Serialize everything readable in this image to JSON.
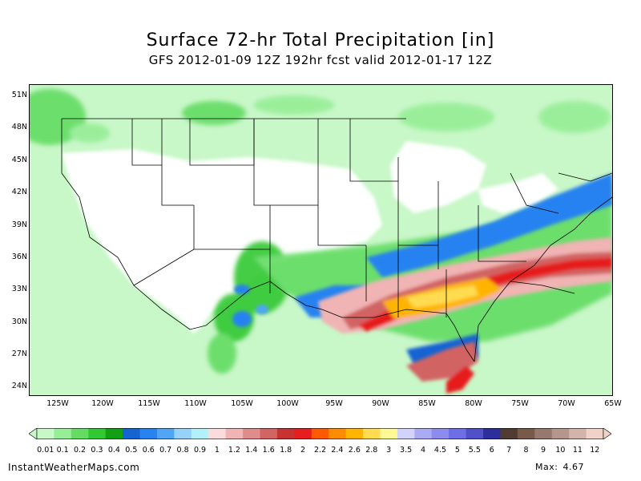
{
  "title": "Surface 72-hr Total Precipitation [in]",
  "subtitle": "GFS 2012-01-09 12Z 192hr fcst valid 2012-01-17 12Z",
  "lat_labels": [
    "51N",
    "48N",
    "45N",
    "42N",
    "39N",
    "36N",
    "33N",
    "30N",
    "27N",
    "24N"
  ],
  "lon_labels": [
    "125W",
    "120W",
    "115W",
    "110W",
    "105W",
    "100W",
    "95W",
    "90W",
    "85W",
    "80W",
    "75W",
    "70W",
    "65W"
  ],
  "colorbar": {
    "labels": [
      "0.01",
      "0.1",
      "0.2",
      "0.3",
      "0.4",
      "0.5",
      "0.6",
      "0.7",
      "0.8",
      "0.9",
      "1",
      "1.2",
      "1.4",
      "1.6",
      "1.8",
      "2",
      "2.2",
      "2.4",
      "2.6",
      "2.8",
      "3",
      "3.5",
      "4",
      "4.5",
      "5",
      "5.5",
      "6",
      "7",
      "8",
      "9",
      "10",
      "11",
      "12"
    ],
    "colors": [
      "#c8f7c8",
      "#96ee96",
      "#64dc64",
      "#32c832",
      "#14a014",
      "#1464d2",
      "#2882f0",
      "#50a5f5",
      "#96d2fa",
      "#b4f0fa",
      "#fadcdc",
      "#f0b4b4",
      "#e08c8c",
      "#d26464",
      "#c83232",
      "#e61e1e",
      "#ff5a00",
      "#ff8c00",
      "#ffb400",
      "#ffdc50",
      "#fffa96",
      "#d2d2fa",
      "#aaaaf5",
      "#8c8cf0",
      "#6e6ee6",
      "#5050c8",
      "#2d2d9b",
      "#503c32",
      "#785a4b",
      "#96786e",
      "#b4968c",
      "#d2b4aa",
      "#f0d2c8"
    ]
  },
  "footer": {
    "site": "InstantWeatherMaps.com",
    "max_label": "Max:",
    "max_value": "4.67"
  },
  "map_data": {
    "region": "Continental United States",
    "lat_range": [
      22.5,
      52
    ],
    "lon_range": [
      -128.5,
      -65
    ],
    "max_precip_in": 4.67
  }
}
